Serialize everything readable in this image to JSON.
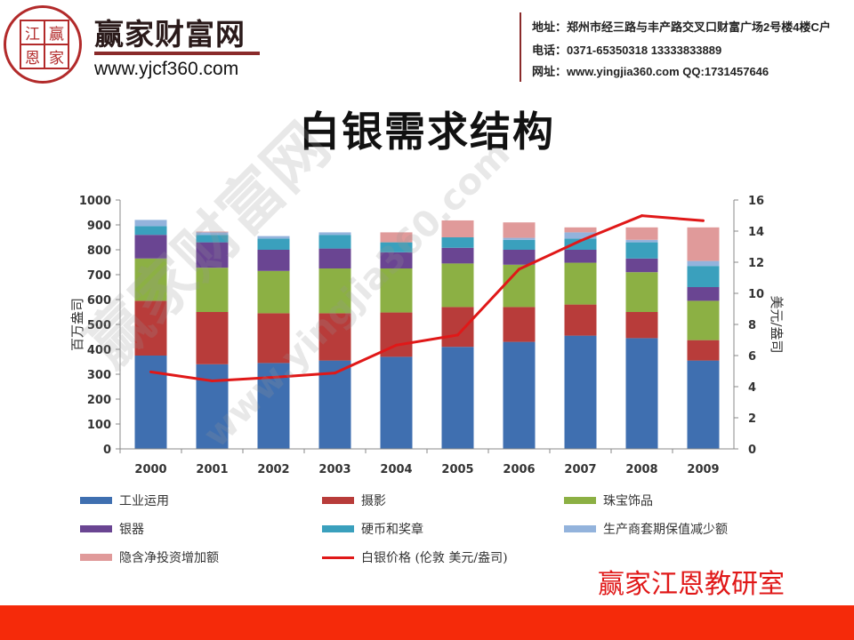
{
  "header": {
    "seal_chars": [
      "江",
      "赢",
      "恩",
      "家"
    ],
    "brand": "赢家财富网",
    "url": "www.yjcf360.com",
    "address": "地址：郑州市经三路与丰产路交叉口财富广场2号楼4楼C户",
    "phone": "电话：0371-65350318 13333833889",
    "website": "网址：www.yingjia360.com QQ:1731457646"
  },
  "watermark": {
    "text1": "赢家财富网",
    "text2": "www.yingjia360.com"
  },
  "studio": "赢家江恩教研室",
  "colors": {
    "footer": "#f52a0a",
    "brand": "#b22a2a"
  },
  "chart_data": {
    "type": "bar",
    "stacked": true,
    "title": "白银需求结构",
    "ylabel": "百万盎司",
    "y2label": "美元/盎司",
    "ylim": [
      0,
      1000
    ],
    "y2lim": [
      0,
      16
    ],
    "yticks": [
      "0",
      "100",
      "200",
      "300",
      "400",
      "500",
      "600",
      "700",
      "800",
      "900",
      "1000"
    ],
    "y2ticks": [
      "0",
      "2",
      "4",
      "6",
      "8",
      "10",
      "12",
      "14",
      "16"
    ],
    "categories": [
      "2000",
      "2001",
      "2002",
      "2003",
      "2004",
      "2005",
      "2006",
      "2007",
      "2008",
      "2009"
    ],
    "series": [
      {
        "name": "工业运用",
        "color": "#3f6fb0",
        "values": [
          375,
          340,
          345,
          355,
          370,
          410,
          430,
          455,
          445,
          355
        ]
      },
      {
        "name": "摄影",
        "color": "#b83c3a",
        "values": [
          220,
          210,
          200,
          190,
          178,
          160,
          140,
          125,
          105,
          82
        ]
      },
      {
        "name": "珠宝饰品",
        "color": "#8cb044",
        "values": [
          170,
          178,
          170,
          180,
          177,
          175,
          170,
          168,
          160,
          158
        ]
      },
      {
        "name": "银器",
        "color": "#6a4592",
        "values": [
          95,
          102,
          85,
          80,
          65,
          63,
          60,
          52,
          55,
          55
        ]
      },
      {
        "name": "硬币和奖章",
        "color": "#3aa0bd",
        "values": [
          35,
          30,
          45,
          55,
          40,
          42,
          40,
          45,
          65,
          85
        ]
      },
      {
        "name": "生产商套期保值减少额",
        "color": "#93b3dc",
        "values": [
          25,
          10,
          10,
          10,
          0,
          0,
          8,
          25,
          10,
          20
        ]
      },
      {
        "name": "隐含净投资增加额",
        "color": "#e09a9a",
        "values": [
          0,
          3,
          0,
          0,
          40,
          68,
          62,
          20,
          50,
          135
        ]
      }
    ],
    "line_series": {
      "name": "白银价格 (伦敦 美元/盎司)",
      "color": "#e01818",
      "axis": "right",
      "values": [
        4.95,
        4.37,
        4.6,
        4.88,
        6.67,
        7.32,
        11.55,
        13.38,
        14.99,
        14.67
      ]
    }
  }
}
